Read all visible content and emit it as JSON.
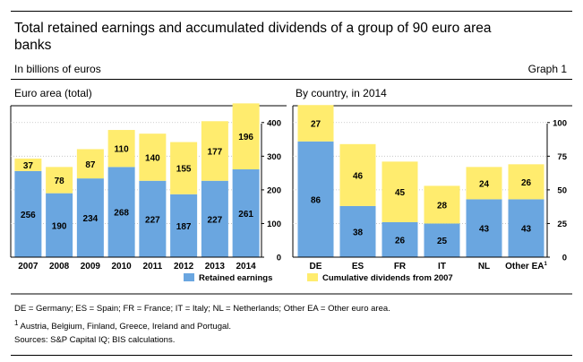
{
  "title": "Total retained earnings and accumulated dividends of a group of 90 euro area banks",
  "units": "In billions of euros",
  "graph_label": "Graph 1",
  "legend": {
    "retained": "Retained earnings",
    "dividends": "Cumulative dividends from 2007"
  },
  "colors": {
    "retained": "#6aa6e0",
    "dividends": "#ffec6e",
    "axis": "#000000",
    "grid": "#bfbfbf"
  },
  "chart_data": [
    {
      "type": "bar",
      "stacked": true,
      "title": "Euro area (total)",
      "categories": [
        "2007",
        "2008",
        "2009",
        "2010",
        "2011",
        "2012",
        "2013",
        "2014"
      ],
      "series": [
        {
          "name": "Retained earnings",
          "values": [
            256,
            190,
            234,
            268,
            227,
            187,
            227,
            261
          ]
        },
        {
          "name": "Cumulative dividends from 2007",
          "values": [
            37,
            78,
            87,
            110,
            140,
            155,
            177,
            196
          ]
        }
      ],
      "yaxis_side": "right",
      "yticks": [
        0,
        100,
        200,
        300,
        400
      ],
      "ylim": [
        0,
        450
      ]
    },
    {
      "type": "bar",
      "stacked": true,
      "title": "By country, in 2014",
      "categories": [
        "DE",
        "ES",
        "FR",
        "IT",
        "NL",
        "Other EA"
      ],
      "category_superscripts": [
        "",
        "",
        "",
        "",
        "",
        "1"
      ],
      "series": [
        {
          "name": "Retained earnings",
          "values": [
            86,
            38,
            26,
            25,
            43,
            43
          ]
        },
        {
          "name": "Cumulative dividends from 2007",
          "values": [
            27,
            46,
            45,
            28,
            24,
            26
          ]
        }
      ],
      "yaxis_side": "right",
      "yticks": [
        0,
        25,
        50,
        75,
        100
      ],
      "ylim": [
        0,
        112.5
      ]
    }
  ],
  "footnotes": {
    "abbreviations": "DE = Germany; ES = Spain; FR = France; IT = Italy; NL = Netherlands; Other EA = Other euro area.",
    "note1_marker": "1",
    "note1": " Austria, Belgium, Finland, Greece, Ireland and Portugal.",
    "sources": "Sources: S&P Capital IQ; BIS calculations."
  }
}
